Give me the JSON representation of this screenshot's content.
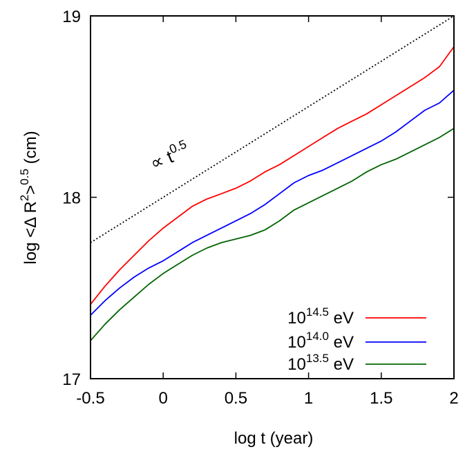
{
  "chart_data": {
    "type": "line",
    "xlabel": "log t (year)",
    "ylabel": {
      "prefix": "log <Δ R",
      "sup1": "2",
      "mid": ">",
      "sup2": "0.5",
      "suffix": " (cm)"
    },
    "xlim": [
      -0.5,
      2
    ],
    "ylim": [
      17,
      19
    ],
    "xticks": [
      {
        "value": -0.5,
        "label": "-0.5"
      },
      {
        "value": 0,
        "label": "0"
      },
      {
        "value": 0.5,
        "label": "0.5"
      },
      {
        "value": 1,
        "label": "1"
      },
      {
        "value": 1.5,
        "label": "1.5"
      },
      {
        "value": 2,
        "label": "2"
      }
    ],
    "yticks": [
      {
        "value": 17,
        "label": "17"
      },
      {
        "value": 18,
        "label": "18"
      },
      {
        "value": 19,
        "label": "19"
      }
    ],
    "grid": false,
    "legend_position": "bottom-right",
    "annotation": {
      "prefix": "∝ t",
      "sup": "0.5"
    },
    "reference_line": {
      "style": "dotted",
      "color": "#000000",
      "x": [
        -0.5,
        2
      ],
      "y": [
        17.75,
        19.0
      ]
    },
    "series": [
      {
        "base": "10",
        "exp": "14.5",
        "unit": " eV",
        "color": "#ff0000",
        "x": [
          -0.5,
          -0.4,
          -0.3,
          -0.2,
          -0.1,
          0.0,
          0.1,
          0.2,
          0.3,
          0.4,
          0.5,
          0.6,
          0.7,
          0.8,
          0.9,
          1.0,
          1.1,
          1.2,
          1.3,
          1.4,
          1.5,
          1.6,
          1.7,
          1.8,
          1.9,
          2.0
        ],
        "y": [
          17.41,
          17.51,
          17.6,
          17.68,
          17.76,
          17.83,
          17.89,
          17.95,
          17.99,
          18.02,
          18.05,
          18.09,
          18.14,
          18.18,
          18.23,
          18.28,
          18.33,
          18.38,
          18.42,
          18.46,
          18.51,
          18.56,
          18.61,
          18.66,
          18.72,
          18.83
        ]
      },
      {
        "base": "10",
        "exp": "14.0",
        "unit": " eV",
        "color": "#0000ff",
        "x": [
          -0.5,
          -0.4,
          -0.3,
          -0.2,
          -0.1,
          0.0,
          0.1,
          0.2,
          0.3,
          0.4,
          0.5,
          0.6,
          0.7,
          0.8,
          0.9,
          1.0,
          1.1,
          1.2,
          1.3,
          1.4,
          1.5,
          1.6,
          1.7,
          1.8,
          1.9,
          2.0
        ],
        "y": [
          17.35,
          17.43,
          17.5,
          17.56,
          17.61,
          17.65,
          17.7,
          17.75,
          17.79,
          17.83,
          17.87,
          17.91,
          17.96,
          18.02,
          18.08,
          18.12,
          18.15,
          18.19,
          18.23,
          18.27,
          18.31,
          18.36,
          18.42,
          18.48,
          18.52,
          18.59
        ]
      },
      {
        "base": "10",
        "exp": "13.5",
        "unit": " eV",
        "color": "#006400",
        "x": [
          -0.5,
          -0.4,
          -0.3,
          -0.2,
          -0.1,
          0.0,
          0.1,
          0.2,
          0.3,
          0.4,
          0.5,
          0.6,
          0.7,
          0.8,
          0.9,
          1.0,
          1.1,
          1.2,
          1.3,
          1.4,
          1.5,
          1.6,
          1.7,
          1.8,
          1.9,
          2.0
        ],
        "y": [
          17.21,
          17.3,
          17.38,
          17.45,
          17.52,
          17.58,
          17.63,
          17.68,
          17.72,
          17.75,
          17.77,
          17.79,
          17.82,
          17.87,
          17.93,
          17.97,
          18.01,
          18.05,
          18.09,
          18.14,
          18.18,
          18.21,
          18.25,
          18.29,
          18.33,
          18.38
        ]
      }
    ]
  }
}
